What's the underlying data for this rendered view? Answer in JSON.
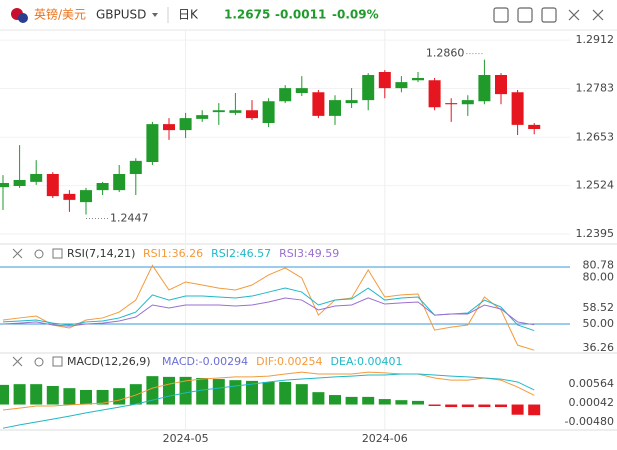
{
  "header": {
    "name": "英镑/美元",
    "symbol": "GBPUSD",
    "period": "日K",
    "price": "1.2675",
    "change": "-0.0011",
    "change_pct": "-0.09%"
  },
  "chart_data": [
    {
      "type": "candlestick",
      "up_color": "#1f9a2b",
      "down_color": "#e5161f",
      "open": [
        1.252,
        1.2523,
        1.2534,
        1.2555,
        1.2502,
        1.248,
        1.2512,
        1.2512,
        1.2555,
        1.2587,
        1.2688,
        1.2672,
        1.2702,
        1.272,
        1.2718,
        1.2725,
        1.2691,
        1.2749,
        1.2771,
        1.2773,
        1.271,
        1.2744,
        1.2752,
        1.2827,
        1.2784,
        1.2805,
        1.2805,
        1.2744,
        1.2741,
        1.2749,
        1.2819,
        1.2773,
        1.2686
      ],
      "high": [
        1.2552,
        1.2632,
        1.2592,
        1.256,
        1.2512,
        1.2518,
        1.2534,
        1.2579,
        1.2597,
        1.2694,
        1.2704,
        1.2718,
        1.2725,
        1.2744,
        1.2771,
        1.2752,
        1.2757,
        1.2792,
        1.2816,
        1.2779,
        1.2765,
        1.2784,
        1.2824,
        1.2832,
        1.2816,
        1.2827,
        1.2811,
        1.2757,
        1.2765,
        1.286,
        1.2824,
        1.2779,
        1.2691
      ],
      "low": [
        1.2459,
        1.2518,
        1.2526,
        1.2491,
        1.2454,
        1.2447,
        1.2499,
        1.2507,
        1.2499,
        1.2579,
        1.2646,
        1.2651,
        1.2694,
        1.2686,
        1.2712,
        1.2699,
        1.268,
        1.2744,
        1.2763,
        1.2704,
        1.2686,
        1.2731,
        1.2725,
        1.2757,
        1.2773,
        1.28,
        1.2725,
        1.2694,
        1.271,
        1.2741,
        1.2741,
        1.2659,
        1.2661
      ],
      "close": [
        1.2531,
        1.2539,
        1.2555,
        1.2496,
        1.2486,
        1.2512,
        1.2531,
        1.2555,
        1.259,
        1.2688,
        1.2672,
        1.2704,
        1.2712,
        1.2725,
        1.2725,
        1.2704,
        1.2749,
        1.2784,
        1.2784,
        1.271,
        1.2752,
        1.2752,
        1.2819,
        1.2784,
        1.28,
        1.2811,
        1.2733,
        1.2741,
        1.2752,
        1.2819,
        1.2768,
        1.2686,
        1.2675
      ],
      "high_label": "1.2860",
      "low_label": "1.2447",
      "ylim": [
        1.2371,
        1.2939
      ],
      "yticks": [
        1.2912,
        1.2783,
        1.2653,
        1.2524,
        1.2395
      ],
      "grid": true
    },
    {
      "type": "line",
      "title": "RSI(7,14,21)",
      "ylim": [
        35.3,
        82.6
      ],
      "yticks": [
        {
          "value": 80,
          "label": "80.00"
        },
        80.78,
        58.52,
        {
          "value": 50,
          "label": "50.00"
        },
        36.26
      ],
      "ref_lines": [
        80,
        50
      ],
      "ref_color": "#3a9ad9",
      "series": [
        {
          "name": "RSI1:36.26",
          "color": "#f39a3c",
          "values": [
            52.1,
            53.2,
            54.2,
            49.5,
            47.9,
            52.1,
            53.2,
            56.3,
            62.6,
            80.8,
            67.9,
            72.1,
            70.5,
            68.9,
            67.9,
            70.5,
            75.8,
            79.5,
            74.2,
            54.7,
            62.6,
            63.7,
            78.4,
            64.2,
            65.3,
            65.8,
            46.8,
            48.4,
            49.5,
            64.2,
            57.4,
            38.9,
            36.26
          ]
        },
        {
          "name": "RSI2:46.57",
          "color": "#1fb8c9",
          "values": [
            51.1,
            51.6,
            52.1,
            50.5,
            49.5,
            51.1,
            51.6,
            53.2,
            56.3,
            65.3,
            62.6,
            64.7,
            64.7,
            64.2,
            63.7,
            64.7,
            66.8,
            68.9,
            66.8,
            60.0,
            62.6,
            63.2,
            68.9,
            62.6,
            63.7,
            64.2,
            54.7,
            55.3,
            55.8,
            62.6,
            58.9,
            49.5,
            46.57
          ]
        },
        {
          "name": "RSI3:49.59",
          "color": "#9a6fd0",
          "values": [
            50.0,
            50.5,
            51.1,
            49.5,
            48.9,
            50.0,
            50.5,
            51.6,
            53.7,
            60.0,
            58.4,
            60.0,
            60.0,
            60.0,
            59.5,
            60.0,
            61.6,
            63.7,
            62.6,
            57.4,
            59.5,
            60.0,
            63.7,
            60.5,
            61.1,
            61.6,
            54.7,
            55.3,
            55.3,
            60.0,
            57.9,
            51.1,
            49.59
          ]
        }
      ]
    },
    {
      "type": "combo",
      "title": "MACD(12,26,9)",
      "ylim": [
        -0.00645,
        0.00949
      ],
      "yticks": [
        0.00564,
        0.00042,
        {
          "value": -0.0048,
          "label": "-0.00480"
        }
      ],
      "categories": [
        null,
        null,
        null,
        null,
        null,
        null,
        null,
        null,
        null,
        null,
        null,
        "2024-05",
        null,
        null,
        null,
        null,
        null,
        null,
        null,
        null,
        null,
        null,
        null,
        "2024-06",
        null,
        null,
        null,
        null,
        null,
        null,
        null,
        null,
        null
      ],
      "series": [
        {
          "name": "MACD:-0.00294",
          "kind": "bar",
          "color": "#6a6fd6",
          "up_color": "#1f9a2b",
          "down_color": "#e5161f",
          "values": [
            0.0054,
            0.0056,
            0.0056,
            0.0051,
            0.0045,
            0.004,
            0.004,
            0.0045,
            0.0056,
            0.0078,
            0.0076,
            0.0076,
            0.0073,
            0.007,
            0.0067,
            0.0065,
            0.0062,
            0.0062,
            0.0056,
            0.0034,
            0.0026,
            0.0021,
            0.0021,
            0.0015,
            0.0012,
            0.001,
            -0.0004,
            -0.0007,
            -0.0007,
            -0.0007,
            -0.0007,
            -0.0028,
            -0.00294
          ]
        },
        {
          "name": "DIF:0.00254",
          "kind": "line",
          "color": "#f39a3c",
          "values": [
            -0.0015,
            -0.001,
            -0.0004,
            -0.0004,
            -0.0001,
            0.0001,
            0.0004,
            0.0012,
            0.0026,
            0.0045,
            0.0056,
            0.0065,
            0.007,
            0.0073,
            0.0076,
            0.0076,
            0.0078,
            0.0084,
            0.0089,
            0.0084,
            0.0084,
            0.0084,
            0.0089,
            0.0087,
            0.0084,
            0.0084,
            0.0073,
            0.0067,
            0.0067,
            0.0073,
            0.0067,
            0.0048,
            0.00254
          ]
        },
        {
          "name": "DEA:0.00401",
          "kind": "line",
          "color": "#1fb8c9",
          "values": [
            -0.0065,
            -0.0056,
            -0.0048,
            -0.004,
            -0.0032,
            -0.0023,
            -0.0015,
            -0.0007,
            0.0001,
            0.0012,
            0.0023,
            0.0032,
            0.004,
            0.0045,
            0.0051,
            0.0056,
            0.0062,
            0.0067,
            0.007,
            0.0073,
            0.0076,
            0.0078,
            0.0081,
            0.0081,
            0.0084,
            0.0084,
            0.0081,
            0.0078,
            0.0076,
            0.0073,
            0.007,
            0.0062,
            0.00401
          ]
        }
      ]
    }
  ]
}
